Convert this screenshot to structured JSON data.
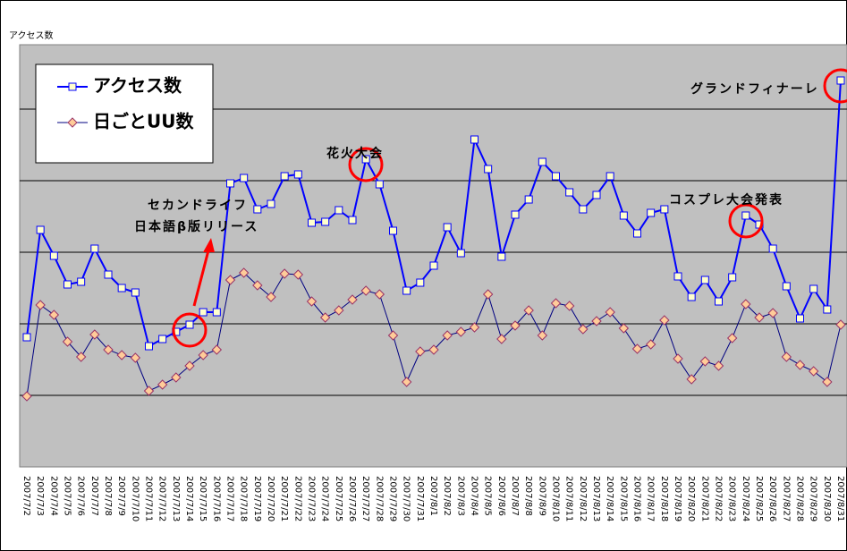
{
  "chart_data": {
    "type": "line",
    "y_label": "アクセス数",
    "categories": [
      "2007/7/2",
      "2007/7/3",
      "2007/7/4",
      "2007/7/5",
      "2007/7/6",
      "2007/7/7",
      "2007/7/8",
      "2007/7/9",
      "2007/7/10",
      "2007/7/11",
      "2007/7/12",
      "2007/7/13",
      "2007/7/14",
      "2007/7/15",
      "2007/7/16",
      "2007/7/17",
      "2007/7/18",
      "2007/7/19",
      "2007/7/20",
      "2007/7/21",
      "2007/7/22",
      "2007/7/23",
      "2007/7/24",
      "2007/7/25",
      "2007/7/26",
      "2007/7/27",
      "2007/7/28",
      "2007/7/29",
      "2007/7/30",
      "2007/7/31",
      "2007/8/1",
      "2007/8/2",
      "2007/8/3",
      "2007/8/4",
      "2007/8/5",
      "2007/8/6",
      "2007/8/7",
      "2007/8/8",
      "2007/8/9",
      "2007/8/10",
      "2007/8/11",
      "2007/8/12",
      "2007/8/13",
      "2007/8/14",
      "2007/8/15",
      "2007/8/16",
      "2007/8/17",
      "2007/8/18",
      "2007/8/19",
      "2007/8/20",
      "2007/8/21",
      "2007/8/22",
      "2007/8/23",
      "2007/8/24",
      "2007/8/25",
      "2007/8/26",
      "2007/8/27",
      "2007/8/28",
      "2007/8/29",
      "2007/8/30",
      "2007/8/31"
    ],
    "series": [
      {
        "name": "アクセス数",
        "color": "#0000ff",
        "values": [
          145,
          265,
          236,
          204,
          207,
          244,
          215,
          200,
          195,
          135,
          143,
          151,
          159,
          173,
          173,
          317,
          323,
          288,
          294,
          325,
          327,
          273,
          274,
          287,
          276,
          344,
          316,
          264,
          197,
          206,
          225,
          268,
          239,
          366,
          333,
          235,
          282,
          299,
          341,
          325,
          307,
          288,
          304,
          325,
          281,
          261,
          284,
          288,
          213,
          190,
          209,
          185,
          212,
          281,
          271,
          244,
          202,
          166,
          199,
          176,
          432
        ]
      },
      {
        "name": "日ごとUU数",
        "color": "#000080",
        "values": [
          79,
          181,
          170,
          140,
          123,
          148,
          131,
          125,
          122,
          85,
          92,
          100,
          113,
          125,
          131,
          209,
          217,
          203,
          190,
          216,
          215,
          185,
          167,
          175,
          187,
          197,
          193,
          147,
          95,
          129,
          131,
          147,
          151,
          156,
          193,
          143,
          158,
          175,
          147,
          183,
          180,
          154,
          163,
          173,
          155,
          132,
          137,
          164,
          121,
          98,
          118,
          113,
          144,
          182,
          167,
          172,
          123,
          114,
          107,
          95,
          159
        ]
      }
    ],
    "ylim": [
      0,
      472
    ],
    "yticks": [
      80,
      160,
      240,
      320,
      400
    ],
    "grid": true,
    "annotations": [
      "グランドフィナーレ",
      "花火大会",
      "セカンドライフ",
      "日本語β版リリース",
      "コスプレ大会発表"
    ]
  }
}
